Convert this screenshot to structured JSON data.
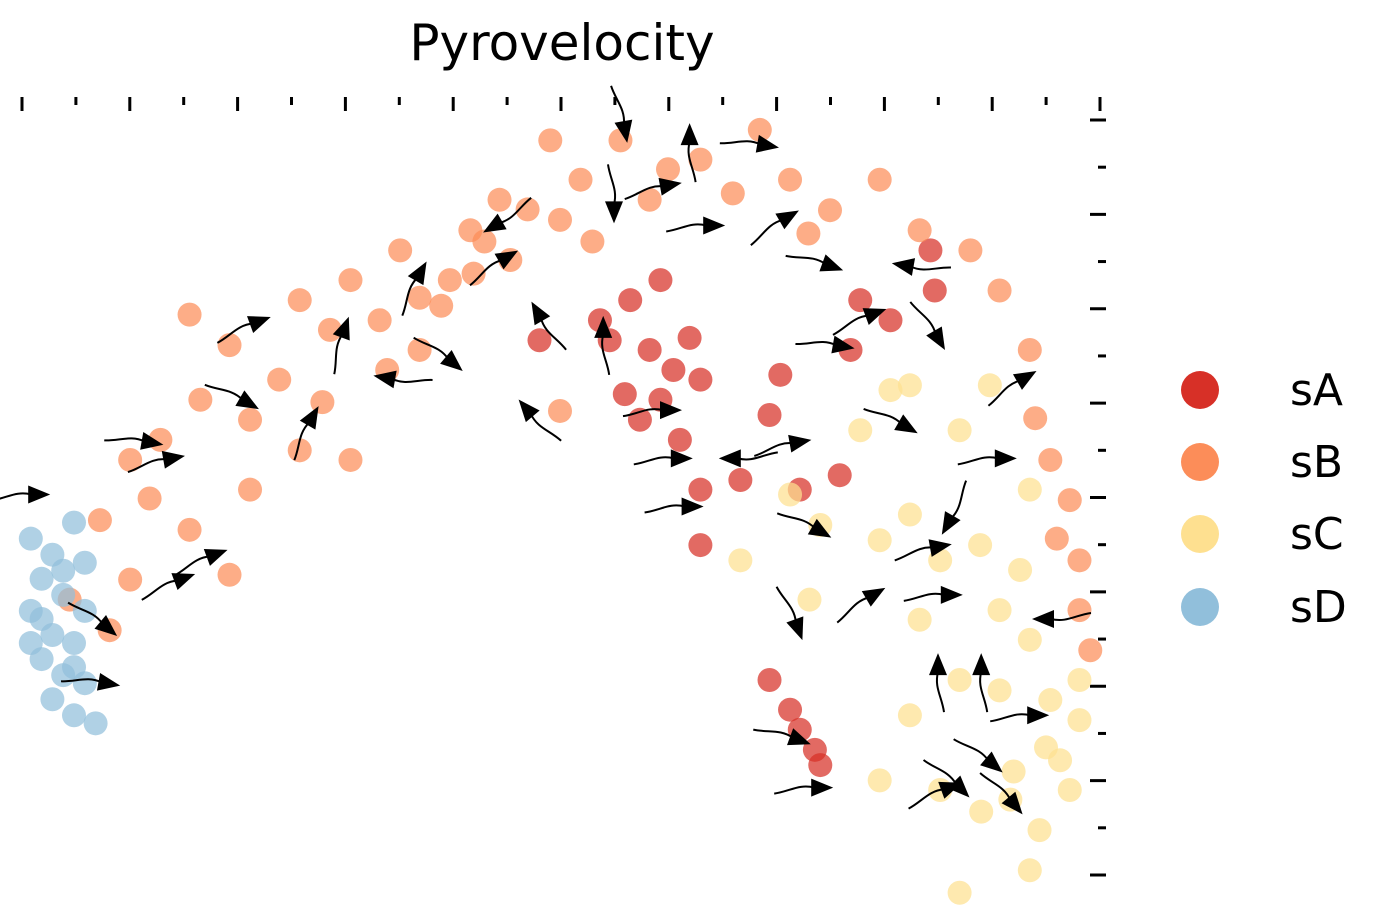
{
  "chart_data": {
    "type": "scatter",
    "title": "Pyrovelocity",
    "xlabel": "",
    "ylabel": "",
    "xlim": [
      0,
      100
    ],
    "ylim": [
      0,
      100
    ],
    "grid": false,
    "legend_position": "right",
    "tick_counts": {
      "top": 21,
      "right": 17
    },
    "series": [
      {
        "name": "sA",
        "color": "#d73027",
        "points": [
          [
            48.1,
            69.7
          ],
          [
            53.7,
            72.2
          ],
          [
            56.5,
            74.7
          ],
          [
            59.3,
            77.2
          ],
          [
            58.3,
            68.5
          ],
          [
            59.3,
            62.3
          ],
          [
            63,
            64.8
          ],
          [
            61.1,
            57.3
          ],
          [
            63,
            51.1
          ],
          [
            66.7,
            52.3
          ],
          [
            70.4,
            65.4
          ],
          [
            69.4,
            60.4
          ],
          [
            76.9,
            68.5
          ],
          [
            77.8,
            74.7
          ],
          [
            80.6,
            72.2
          ],
          [
            84.3,
            80.9
          ],
          [
            84.7,
            75.9
          ],
          [
            72.2,
            51.1
          ],
          [
            75.9,
            52.9
          ],
          [
            63,
            44.2
          ],
          [
            69.4,
            27.4
          ],
          [
            71.3,
            23.7
          ],
          [
            72.2,
            21.2
          ],
          [
            73.6,
            18.7
          ],
          [
            74.1,
            16.8
          ],
          [
            57.4,
            59.8
          ],
          [
            54.6,
            69.7
          ],
          [
            60.5,
            66
          ],
          [
            62,
            70
          ],
          [
            56,
            63
          ]
        ]
      },
      {
        "name": "sB",
        "color": "#fc8d59",
        "points": [
          [
            7.4,
            47.3
          ],
          [
            10.2,
            54.8
          ],
          [
            13,
            57.3
          ],
          [
            16.7,
            62.3
          ],
          [
            15.7,
            72.9
          ],
          [
            19.4,
            69.1
          ],
          [
            21.3,
            59.8
          ],
          [
            24,
            64.8
          ],
          [
            25.9,
            74.7
          ],
          [
            28.7,
            71
          ],
          [
            30.6,
            77.2
          ],
          [
            33.3,
            72.2
          ],
          [
            35.2,
            80.9
          ],
          [
            37,
            68.5
          ],
          [
            39.8,
            77.2
          ],
          [
            41.7,
            83.4
          ],
          [
            44.4,
            87.2
          ],
          [
            45.4,
            79.7
          ],
          [
            49.1,
            94.6
          ],
          [
            50,
            84.7
          ],
          [
            51.9,
            89.7
          ],
          [
            55.6,
            94.6
          ],
          [
            58.3,
            87.2
          ],
          [
            63,
            92.2
          ],
          [
            68.5,
            95.9
          ],
          [
            71.3,
            89.7
          ],
          [
            75,
            85.9
          ],
          [
            79.6,
            89.7
          ],
          [
            83.3,
            83.4
          ],
          [
            88,
            80.9
          ],
          [
            90.7,
            75.9
          ],
          [
            93.5,
            68.5
          ],
          [
            95.4,
            54.8
          ],
          [
            97.2,
            49.8
          ],
          [
            98.1,
            42.3
          ],
          [
            98.1,
            36.1
          ],
          [
            99.1,
            31.1
          ],
          [
            19.4,
            40.5
          ],
          [
            10.2,
            39.9
          ],
          [
            8.3,
            33.6
          ],
          [
            30.6,
            54.8
          ],
          [
            25.9,
            56
          ],
          [
            50,
            60.9
          ],
          [
            21.3,
            51.1
          ],
          [
            15.7,
            46.1
          ],
          [
            4.6,
            37.4
          ],
          [
            43,
            82
          ],
          [
            47,
            86
          ],
          [
            53,
            82
          ],
          [
            39,
            74
          ],
          [
            12,
            50
          ],
          [
            28,
            62
          ],
          [
            34,
            66
          ],
          [
            66,
            88
          ],
          [
            60,
            91
          ],
          [
            73,
            83
          ],
          [
            96,
            45
          ],
          [
            94,
            60
          ],
          [
            42,
            78
          ],
          [
            37,
            75
          ]
        ]
      },
      {
        "name": "sC",
        "color": "#fee090",
        "points": [
          [
            66.7,
            42.3
          ],
          [
            71.3,
            50.5
          ],
          [
            74.1,
            46.7
          ],
          [
            77.8,
            58.5
          ],
          [
            80.6,
            63.5
          ],
          [
            82.4,
            64.1
          ],
          [
            87,
            58.5
          ],
          [
            89.8,
            64.1
          ],
          [
            93.5,
            51.1
          ],
          [
            82.4,
            48
          ],
          [
            79.6,
            44.8
          ],
          [
            85.2,
            42.3
          ],
          [
            88.9,
            44.2
          ],
          [
            92.6,
            41.1
          ],
          [
            73.1,
            37.4
          ],
          [
            83.3,
            34.9
          ],
          [
            90.7,
            36.1
          ],
          [
            93.5,
            32.4
          ],
          [
            87,
            27.4
          ],
          [
            82.4,
            23
          ],
          [
            90.7,
            26.1
          ],
          [
            95.4,
            24.9
          ],
          [
            98.1,
            22.4
          ],
          [
            96.3,
            17.4
          ],
          [
            85.2,
            13.7
          ],
          [
            79.6,
            14.9
          ],
          [
            91.7,
            12.5
          ],
          [
            94.4,
            8.7
          ],
          [
            93.5,
            3.7
          ],
          [
            87,
            0.9
          ],
          [
            97.2,
            13.7
          ],
          [
            98.1,
            27.4
          ],
          [
            95,
            19
          ],
          [
            92,
            16
          ],
          [
            89,
            11
          ]
        ]
      },
      {
        "name": "sD",
        "color": "#91bfdb",
        "points": [
          [
            1,
            45
          ],
          [
            3,
            43
          ],
          [
            5,
            47
          ],
          [
            2,
            40
          ],
          [
            4,
            38
          ],
          [
            6,
            36
          ],
          [
            1,
            36
          ],
          [
            3,
            33
          ],
          [
            5,
            32
          ],
          [
            2,
            30
          ],
          [
            4,
            28
          ],
          [
            6,
            27
          ],
          [
            3,
            25
          ],
          [
            5,
            23
          ],
          [
            7,
            22
          ],
          [
            2,
            35
          ],
          [
            4,
            41
          ],
          [
            6,
            42
          ],
          [
            1,
            32
          ],
          [
            5,
            29
          ]
        ]
      }
    ],
    "streamline_arrows": [
      [
        1.5,
        50.5,
        0
      ],
      [
        12,
        57,
        -10
      ],
      [
        14,
        55,
        10
      ],
      [
        18,
        43,
        20
      ],
      [
        22,
        72,
        20
      ],
      [
        21,
        62,
        -30
      ],
      [
        27,
        60,
        60
      ],
      [
        30,
        71,
        70
      ],
      [
        34,
        65,
        170
      ],
      [
        37,
        78,
        60
      ],
      [
        40,
        67,
        -40
      ],
      [
        45,
        80,
        30
      ],
      [
        44,
        84,
        -150
      ],
      [
        48,
        73,
        120
      ],
      [
        47,
        61,
        130
      ],
      [
        54,
        71,
        90
      ],
      [
        55,
        86,
        -90
      ],
      [
        56,
        96,
        -80
      ],
      [
        60,
        89,
        10
      ],
      [
        62,
        95,
        90
      ],
      [
        64,
        84,
        0
      ],
      [
        69,
        94,
        -10
      ],
      [
        71,
        85,
        30
      ],
      [
        75,
        79,
        -20
      ],
      [
        76,
        69,
        -10
      ],
      [
        79,
        73,
        20
      ],
      [
        82,
        79,
        170
      ],
      [
        85,
        70,
        -60
      ],
      [
        60,
        61,
        0
      ],
      [
        61,
        55,
        0
      ],
      [
        62,
        49,
        0
      ],
      [
        66,
        55,
        180
      ],
      [
        72,
        57,
        10
      ],
      [
        74,
        46,
        -30
      ],
      [
        79,
        38,
        30
      ],
      [
        85,
        44,
        10
      ],
      [
        86,
        38,
        0
      ],
      [
        82,
        59,
        -30
      ],
      [
        86,
        47,
        -120
      ],
      [
        91,
        55,
        0
      ],
      [
        93,
        65,
        30
      ],
      [
        95,
        35,
        180
      ],
      [
        85,
        29,
        90
      ],
      [
        89,
        29,
        90
      ],
      [
        94,
        23,
        0
      ],
      [
        90,
        17,
        -40
      ],
      [
        86,
        14,
        20
      ],
      [
        87,
        14,
        -45
      ],
      [
        92,
        12,
        -50
      ],
      [
        72,
        20,
        -20
      ],
      [
        74,
        14,
        0
      ],
      [
        72,
        34,
        -70
      ],
      [
        15,
        40,
        20
      ],
      [
        8,
        34,
        -40
      ],
      [
        8,
        27,
        -10
      ]
    ]
  },
  "legend": {
    "items": [
      {
        "label": "sA",
        "color": "#d73027"
      },
      {
        "label": "sB",
        "color": "#fc8d59"
      },
      {
        "label": "sC",
        "color": "#fee090"
      },
      {
        "label": "sD",
        "color": "#91bfdb"
      }
    ]
  }
}
